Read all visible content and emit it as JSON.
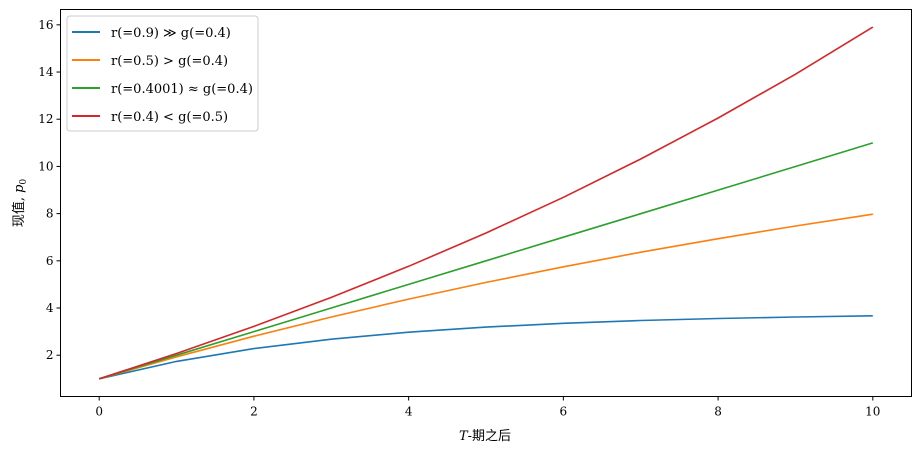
{
  "chart_data": {
    "type": "line",
    "title": "",
    "xlabel_italic": "T",
    "xlabel_rest": "-期之后",
    "ylabel_main": "现值, ",
    "ylabel_symbol": "p",
    "ylabel_sub": "0",
    "xlim": [
      -0.5,
      10.5
    ],
    "ylim": [
      0.25,
      16.65
    ],
    "xticks": [
      0,
      2,
      4,
      6,
      8,
      10
    ],
    "yticks": [
      2,
      4,
      6,
      8,
      10,
      12,
      14,
      16
    ],
    "grid": false,
    "legend_position": "top-left",
    "x": [
      0,
      1,
      2,
      3,
      4,
      5,
      6,
      7,
      8,
      9,
      10
    ],
    "series": [
      {
        "name": "r(=0.9) ≫ g(=0.4)",
        "color": "#1f77b4",
        "values": [
          1,
          1.737,
          2.28,
          2.68,
          2.975,
          3.192,
          3.352,
          3.47,
          3.557,
          3.621,
          3.668
        ]
      },
      {
        "name": "r(=0.5) > g(=0.4)",
        "color": "#ff7f0e",
        "values": [
          1,
          1.933,
          2.804,
          3.617,
          4.376,
          5.085,
          5.746,
          6.363,
          6.938,
          7.476,
          7.977
        ]
      },
      {
        "name": "r(=0.4001) ≈ g(=0.4)",
        "color": "#2ca02c",
        "values": [
          1,
          2.0,
          3.0,
          4.0,
          4.999,
          5.999,
          6.999,
          7.998,
          8.997,
          9.996,
          10.996
        ]
      },
      {
        "name": "r(=0.4) < g(=0.5)",
        "color": "#d62728",
        "values": [
          1,
          2.071,
          3.219,
          4.449,
          5.767,
          7.179,
          8.692,
          10.313,
          12.05,
          13.91,
          15.904
        ]
      }
    ]
  }
}
